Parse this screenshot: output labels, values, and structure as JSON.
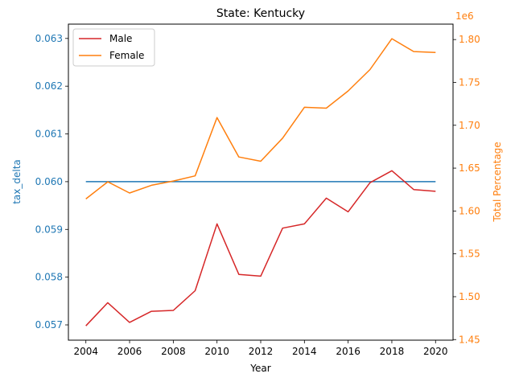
{
  "chart_data": {
    "type": "line",
    "title": "State: Kentucky",
    "xlabel": "Year",
    "ylabel_left": "tax_delta",
    "ylabel_right": "Total Percentage",
    "right_axis_offset_label": "1e6",
    "x": [
      2004,
      2005,
      2006,
      2007,
      2008,
      2009,
      2010,
      2011,
      2012,
      2013,
      2014,
      2015,
      2016,
      2017,
      2018,
      2019,
      2020
    ],
    "x_ticks": [
      "2004",
      "2006",
      "2008",
      "2010",
      "2012",
      "2014",
      "2016",
      "2018",
      "2020"
    ],
    "ylim_left": [
      0.05668,
      0.0633
    ],
    "y_ticks_left": [
      "0.057",
      "0.058",
      "0.059",
      "0.060",
      "0.061",
      "0.062",
      "0.063"
    ],
    "ylim_right": [
      1.4493,
      1.818
    ],
    "y_ticks_right": [
      "1.45",
      "1.50",
      "1.55",
      "1.60",
      "1.65",
      "1.70",
      "1.75",
      "1.80"
    ],
    "series": [
      {
        "name": "tax_delta",
        "axis": "left",
        "color": "#1f77b4",
        "in_legend": false,
        "values": [
          0.06,
          0.06,
          0.06,
          0.06,
          0.06,
          0.06,
          0.06,
          0.06,
          0.06,
          0.06,
          0.06,
          0.06,
          0.06,
          0.06,
          0.06,
          0.06,
          0.06
        ]
      },
      {
        "name": "Male",
        "axis": "right",
        "color": "#d62728",
        "in_legend": true,
        "values": [
          1.466,
          1.493,
          1.47,
          1.483,
          1.484,
          1.507,
          1.585,
          1.526,
          1.524,
          1.58,
          1.585,
          1.615,
          1.599,
          1.633,
          1.647,
          1.625,
          1.623
        ]
      },
      {
        "name": "Female",
        "axis": "right",
        "color": "#ff7f0e",
        "in_legend": true,
        "values": [
          1.614,
          1.634,
          1.621,
          1.63,
          1.635,
          1.641,
          1.709,
          1.663,
          1.658,
          1.685,
          1.721,
          1.72,
          1.74,
          1.765,
          1.801,
          1.786,
          1.785
        ]
      }
    ],
    "legend_position": "top-left",
    "grid": false,
    "colors": {
      "left_axis": "#1f77b4",
      "right_axis": "#ff7f0e",
      "text": "#000000"
    }
  }
}
